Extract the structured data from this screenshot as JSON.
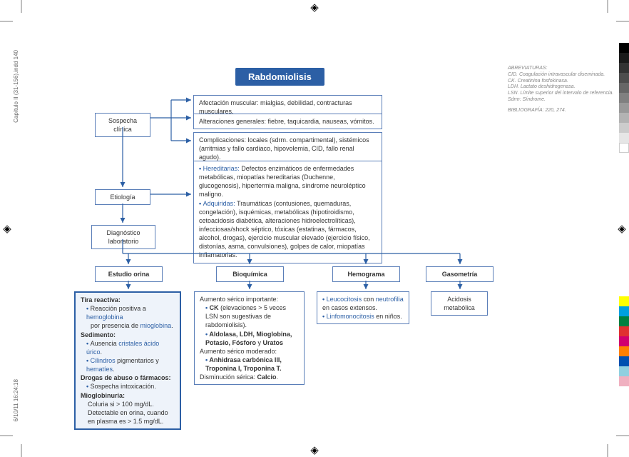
{
  "meta": {
    "side_top": "Capítulo II (31-156).indd   140",
    "side_bot": "6/10/11   16:24:18"
  },
  "title": "Rabdomiolisis",
  "colors": {
    "brand": "#2c5fa5",
    "box_border": "#5a7eb8",
    "fill_bg": "#eef3fa",
    "text_blue": "#2c5fa5",
    "abbrev": "#888"
  },
  "nodes": {
    "sospecha": "Sospecha clínica",
    "etiologia": "Etiología",
    "diag": "Diagnóstico laboratorio",
    "afect": "Afectación muscular: mialgias, debilidad, contracturas musculares.",
    "alter": "Alteraciones generales: fiebre, taquicardia, nauseas, vómitos.",
    "compl": "Complicaciones: locales (sdrm. compartimental), sistémicos (arritmias y fallo cardiaco, hipovolemia, CID, fallo renal agudo).",
    "etio_box": {
      "h_label": "Hereditarias:",
      "h_text": " Defectos enzimáticos de enfermedades metabólicas, miopatías hereditarias (Duchenne, glucogenosis), hipertermia maligna, síndrome neuroléptico maligno.",
      "a_label": "Adquiridas:",
      "a_text": " Traumáticas (contusiones, quemaduras, congelación), isquémicas, metabólicas (hipotiroidismo, cetoacidosis diabética, alteraciones hidroelectrolíticas), infecciosas/shock séptico, tóxicas (estatinas, fármacos, alcohol, drogas), ejercicio muscular elevado (ejercicio físico, distonías, asma, convulsiones), golpes de calor, miopatías inflamatorias."
    },
    "studies": {
      "orina": "Estudio orina",
      "bioq": "Bioquímica",
      "hemo": "Hemograma",
      "gaso": "Gasometría"
    },
    "orina_box": {
      "h1": "Tira reactiva:",
      "l1a": "Reacción positiva a ",
      "l1b": "hemoglobina",
      "l2a": "por presencia de ",
      "l2b": "mioglobina",
      "h2": "Sedimento:",
      "l3a": "Ausencia ",
      "l3b": "cristales ácido úrico",
      "l4a": "Cilindros",
      "l4b": " pigmentarios y ",
      "l4c": "hematíes",
      "h3": "Drogas de abuso o fármacos:",
      "l5": "Sospecha intoxicación.",
      "h4": "Mioglobinuria:",
      "l6": "Coluria si > 100 mg/dL. Detectable en orina, cuando en plasma es > 1.5 mg/dL."
    },
    "bioq_box": {
      "l1": "Aumento sérico importante:",
      "l2a": "CK",
      "l2b": " (elevaciones > 5 veces LSN son sugestivas de rabdomiolisis).",
      "l3": "Aldolasa, LDH, Mioglobina, Potasio, Fósforo",
      "l3b": " y ",
      "l3c": "Uratos",
      "l4": "Aumento sérico moderado:",
      "l5": "Anhidrasa carbónica III, Troponina I, Troponina T.",
      "l6a": "Disminución sérica: ",
      "l6b": "Calcio"
    },
    "hemo_box": {
      "l1a": "Leucocitosis",
      "l1b": " con ",
      "l1c": "neutrofilia",
      "l1d": " en casos extensos.",
      "l2a": "Linfomonocitosis",
      "l2b": " en niños."
    },
    "gaso_box": "Acidosis metabólica"
  },
  "abbrev": {
    "h": "ABREVIATURAS:",
    "l1": "CID. Coagulación intravascular diseminada.",
    "l2": "CK. Creatinina fosfokinasa.",
    "l3": "LDH. Lactato deshidrogenasa.",
    "l4": "LSN. Límite superior del intervalo de referencia.",
    "l5": "Sdrm: Síndrome.",
    "bib": "BIBLIOGRAFÍA: 220, 274."
  },
  "grayscale": [
    "#000000",
    "#1a1a1a",
    "#333333",
    "#4d4d4d",
    "#666666",
    "#808080",
    "#999999",
    "#b3b3b3",
    "#cccccc",
    "#e6e6e6",
    "#ffffff"
  ],
  "colorbars": [
    "#ffff00",
    "#00a0e0",
    "#008040",
    "#e03030",
    "#d0006f",
    "#ff8000",
    "#0050b0",
    "#90d0e0",
    "#f0b0c0"
  ]
}
